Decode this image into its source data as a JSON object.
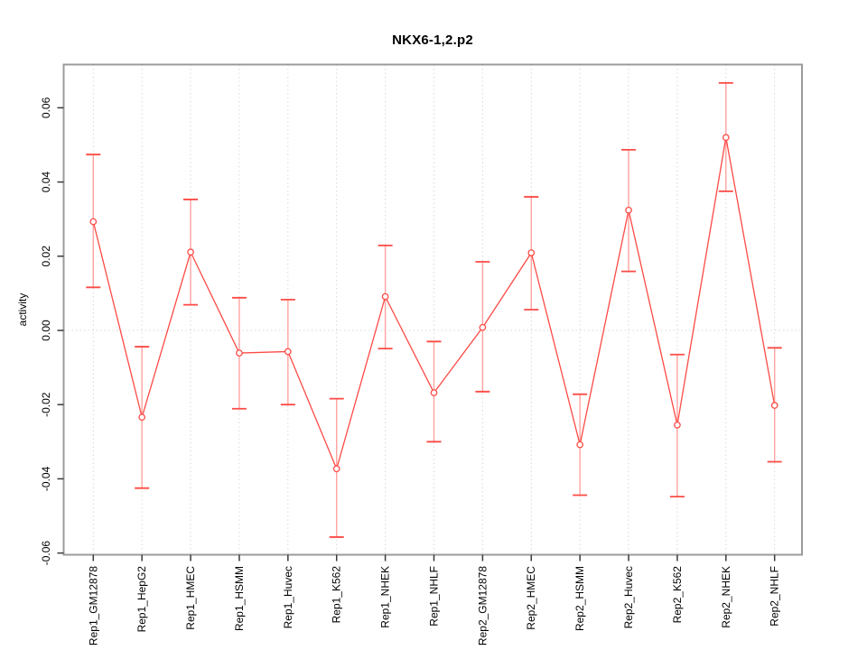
{
  "chart_data": {
    "type": "line",
    "title": "NKX6-1,2.p2",
    "ylabel": "activity",
    "xlabel": "",
    "legend_position": "none",
    "grid": "dotted vertical line at each category and dotted horizontal line at zero",
    "categories": [
      "Rep1_GM12878",
      "Rep1_HepG2",
      "Rep1_HMEC",
      "Rep1_HSMM",
      "Rep1_Huvec",
      "Rep1_K562",
      "Rep1_NHEK",
      "Rep1_NHLF",
      "Rep2_GM12878",
      "Rep2_HMEC",
      "Rep2_HSMM",
      "Rep2_Huvec",
      "Rep2_K562",
      "Rep2_NHEK",
      "Rep2_NHLF"
    ],
    "series": [
      {
        "name": "activity",
        "values": [
          0.0293,
          -0.0234,
          0.0211,
          -0.0061,
          -0.0057,
          -0.0373,
          0.0091,
          -0.0168,
          0.0008,
          0.0209,
          -0.0308,
          0.0324,
          -0.0255,
          0.052,
          -0.0202
        ],
        "ci_high": [
          0.0474,
          -0.0044,
          0.0353,
          0.0088,
          0.0083,
          -0.0184,
          0.0229,
          -0.003,
          0.0185,
          0.036,
          -0.0172,
          0.0487,
          -0.0065,
          0.0667,
          -0.0047
        ],
        "ci_low": [
          0.0116,
          -0.0425,
          0.0069,
          -0.0211,
          -0.02,
          -0.0557,
          -0.0049,
          -0.03,
          -0.0165,
          0.0056,
          -0.0444,
          0.0159,
          -0.0448,
          0.0375,
          -0.0354
        ]
      }
    ],
    "yticks": [
      -0.06,
      -0.04,
      -0.02,
      0,
      0.02,
      0.04,
      0.06
    ],
    "ytick_labels": [
      "-0.06",
      "-0.04",
      "-0.02",
      "0.00",
      "0.02",
      "0.04",
      "0.06"
    ],
    "ylim": [
      -0.0605,
      0.0715
    ],
    "colors": {
      "line": "#fc4a45",
      "marker_stroke": "#fc4a45",
      "marker_fill": "#ffffff",
      "error_stem": "#ffa3a0",
      "error_cap": "#fc4a45",
      "gridline": "#d9d9d9",
      "frame": "#9b9b9b",
      "tick": "#3a3a3a",
      "text": "#000000"
    }
  }
}
